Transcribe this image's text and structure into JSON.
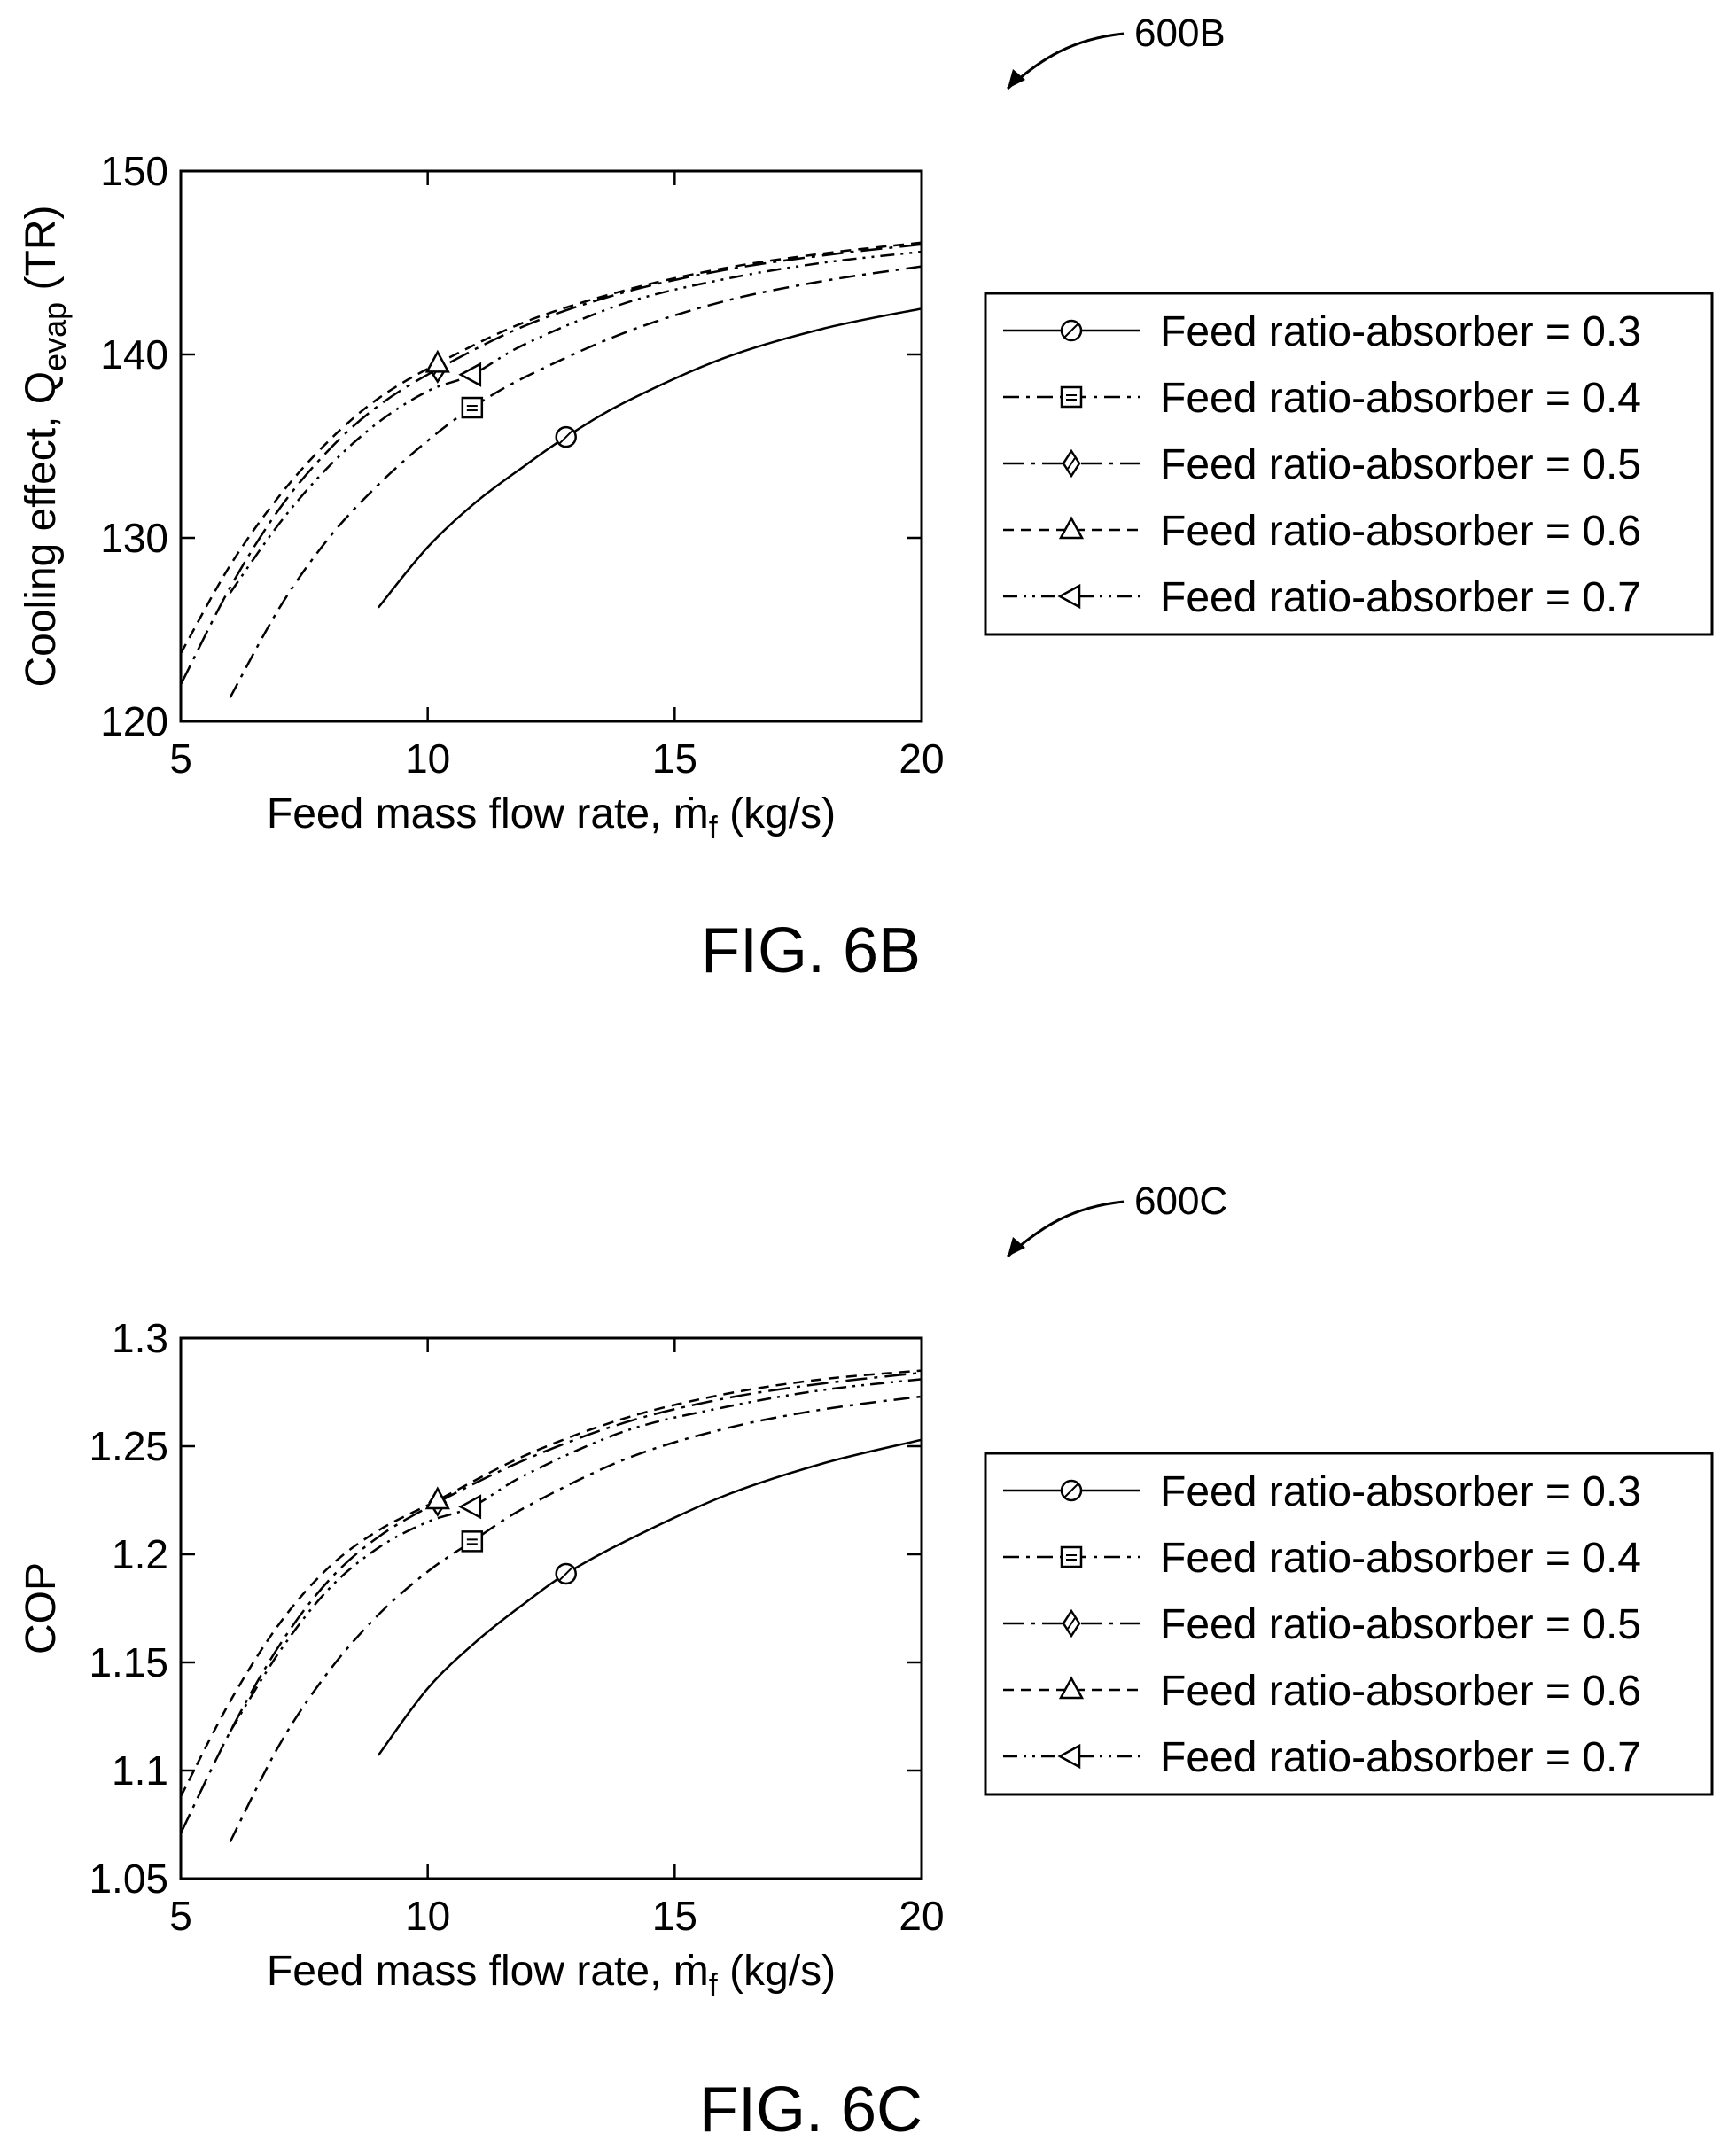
{
  "chart_data": [
    {
      "type": "line",
      "ref_label": "600B",
      "figure_label": "FIG. 6B",
      "xlabel": "Feed mass flow rate, ṁ",
      "xlabel_sub": "f",
      "xlabel_unit": " (kg/s)",
      "ylabel": "Cooling effect, Q",
      "ylabel_sub": "evap",
      "ylabel_unit": " (TR)",
      "xlim": [
        5,
        20
      ],
      "ylim": [
        120,
        150
      ],
      "xticks": [
        5,
        10,
        15,
        20
      ],
      "yticks": [
        120,
        130,
        140,
        150
      ],
      "tick_labels_x": [
        "5",
        "10",
        "15",
        "20"
      ],
      "tick_labels_y": [
        "120",
        "130",
        "140",
        "150"
      ],
      "grid": false,
      "legend_position": "right",
      "series": [
        {
          "name": "Feed ratio-absorber = 0.3",
          "marker": "circle",
          "dash": "solid",
          "x": [
            9,
            10,
            11,
            12,
            12.8,
            14,
            16,
            18,
            20
          ],
          "y": [
            126.2,
            129.5,
            132.0,
            134.0,
            135.5,
            137.4,
            139.8,
            141.4,
            142.5
          ],
          "marker_at": [
            12.8,
            135.5
          ]
        },
        {
          "name": "Feed ratio-absorber = 0.4",
          "marker": "square",
          "dash": "dashdot",
          "x": [
            6,
            7,
            8,
            9,
            10,
            10.9,
            12,
            14,
            16,
            18,
            20
          ],
          "y": [
            121.3,
            126.2,
            130.0,
            132.9,
            135.3,
            137.1,
            138.8,
            141.2,
            142.9,
            144.0,
            144.8
          ],
          "marker_at": [
            10.9,
            137.1
          ]
        },
        {
          "name": "Feed ratio-absorber = 0.5",
          "marker": "diamond",
          "dash": "longdashdot",
          "x": [
            5,
            6,
            7,
            8,
            9,
            10.2,
            12,
            14,
            16,
            18,
            20
          ],
          "y": [
            122.0,
            127.3,
            131.6,
            134.8,
            137.2,
            139.2,
            141.6,
            143.4,
            144.6,
            145.4,
            146.0
          ],
          "marker_at": [
            10.2,
            139.2
          ]
        },
        {
          "name": "Feed ratio-absorber = 0.6",
          "marker": "triangle-up",
          "dash": "dashed",
          "x": [
            5,
            6,
            7,
            8,
            9,
            10.2,
            12,
            14,
            16,
            18,
            20
          ],
          "y": [
            123.7,
            128.5,
            132.3,
            135.3,
            137.6,
            139.5,
            141.8,
            143.5,
            144.7,
            145.5,
            146.1
          ],
          "marker_at": [
            10.2,
            139.5
          ]
        },
        {
          "name": "Feed ratio-absorber = 0.7",
          "marker": "triangle-left",
          "dash": "dashdotdot",
          "x": [
            6,
            7,
            8,
            9,
            10,
            10.9,
            12,
            14,
            16,
            18,
            20
          ],
          "y": [
            127.0,
            130.8,
            133.9,
            136.3,
            138.0,
            138.9,
            140.6,
            142.8,
            144.1,
            145.0,
            145.6
          ],
          "marker_at": [
            10.9,
            138.9
          ]
        }
      ]
    },
    {
      "type": "line",
      "ref_label": "600C",
      "figure_label": "FIG. 6C",
      "xlabel": "Feed mass flow rate, ṁ",
      "xlabel_sub": "f",
      "xlabel_unit": " (kg/s)",
      "ylabel": "COP",
      "ylabel_sub": "",
      "ylabel_unit": "",
      "xlim": [
        5,
        20
      ],
      "ylim": [
        1.05,
        1.3
      ],
      "xticks": [
        5,
        10,
        15,
        20
      ],
      "yticks": [
        1.05,
        1.1,
        1.15,
        1.2,
        1.25,
        1.3
      ],
      "tick_labels_x": [
        "5",
        "10",
        "15",
        "20"
      ],
      "tick_labels_y": [
        "1.05",
        "1.1",
        "1.15",
        "1.2",
        "1.25",
        "1.3"
      ],
      "grid": false,
      "legend_position": "right",
      "series": [
        {
          "name": "Feed ratio-absorber = 0.3",
          "marker": "circle",
          "dash": "solid",
          "x": [
            9,
            10,
            11,
            12,
            12.8,
            14,
            16,
            18,
            20
          ],
          "y": [
            1.107,
            1.138,
            1.16,
            1.178,
            1.191,
            1.206,
            1.227,
            1.242,
            1.253
          ],
          "marker_at": [
            12.8,
            1.191
          ]
        },
        {
          "name": "Feed ratio-absorber = 0.4",
          "marker": "square",
          "dash": "dashdot",
          "x": [
            6,
            7,
            8,
            9,
            10,
            10.9,
            12,
            14,
            16,
            18,
            20
          ],
          "y": [
            1.067,
            1.112,
            1.146,
            1.172,
            1.192,
            1.206,
            1.222,
            1.244,
            1.258,
            1.267,
            1.273
          ],
          "marker_at": [
            10.9,
            1.206
          ]
        },
        {
          "name": "Feed ratio-absorber = 0.5",
          "marker": "diamond",
          "dash": "longdashdot",
          "x": [
            5,
            6,
            7,
            8,
            9,
            10.2,
            12,
            14,
            16,
            18,
            20
          ],
          "y": [
            1.071,
            1.118,
            1.158,
            1.188,
            1.208,
            1.224,
            1.244,
            1.261,
            1.272,
            1.279,
            1.284
          ],
          "marker_at": [
            10.2,
            1.224
          ]
        },
        {
          "name": "Feed ratio-absorber = 0.6",
          "marker": "triangle-up",
          "dash": "dashed",
          "x": [
            5,
            6,
            7,
            8,
            9,
            10.2,
            12,
            14,
            16,
            18,
            20
          ],
          "y": [
            1.088,
            1.132,
            1.168,
            1.194,
            1.211,
            1.225,
            1.246,
            1.263,
            1.274,
            1.281,
            1.285
          ],
          "marker_at": [
            10.2,
            1.225
          ]
        },
        {
          "name": "Feed ratio-absorber = 0.7",
          "marker": "triangle-left",
          "dash": "dashdotdot",
          "x": [
            6,
            7,
            8,
            9,
            10,
            10.9,
            12,
            14,
            16,
            18,
            20
          ],
          "y": [
            1.118,
            1.155,
            1.184,
            1.203,
            1.215,
            1.222,
            1.237,
            1.257,
            1.268,
            1.276,
            1.281
          ],
          "marker_at": [
            10.9,
            1.222
          ]
        }
      ]
    }
  ]
}
